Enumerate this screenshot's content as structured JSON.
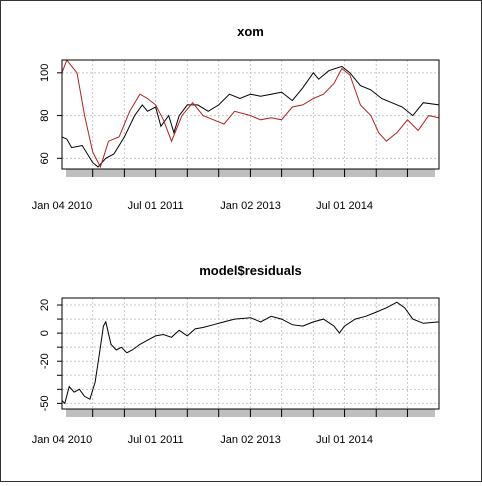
{
  "chart_data": [
    {
      "type": "line",
      "title": "xom",
      "xlabel": "",
      "ylabel": "",
      "x_tick_labels": [
        "Jan 04 2010",
        "Jul 01 2011",
        "Jan 02 2013",
        "Jul 01 2014"
      ],
      "x_tick_dates": [
        "2010-01-04",
        "2011-07-01",
        "2013-01-02",
        "2014-07-01"
      ],
      "x_range": [
        "2010-01-04",
        "2015-12-31"
      ],
      "ylim": [
        55,
        106
      ],
      "y_ticks": [
        60,
        80,
        100
      ],
      "grid": true,
      "colors": {
        "series1": "#000000",
        "series2": "#b22222",
        "axis_band": "#bfbfbf",
        "grid": "#c8c8c8"
      },
      "series": [
        {
          "color": "#000000",
          "points": [
            [
              "2010-01-04",
              70
            ],
            [
              "2010-02-01",
              69
            ],
            [
              "2010-03-01",
              65
            ],
            [
              "2010-05-01",
              66
            ],
            [
              "2010-07-01",
              58
            ],
            [
              "2010-08-01",
              56
            ],
            [
              "2010-09-15",
              60
            ],
            [
              "2010-11-01",
              62
            ],
            [
              "2011-01-01",
              70
            ],
            [
              "2011-03-01",
              80
            ],
            [
              "2011-04-15",
              85
            ],
            [
              "2011-05-15",
              82
            ],
            [
              "2011-07-01",
              84
            ],
            [
              "2011-08-01",
              75
            ],
            [
              "2011-09-15",
              80
            ],
            [
              "2011-10-15",
              72
            ],
            [
              "2011-11-15",
              80
            ],
            [
              "2012-01-01",
              85
            ],
            [
              "2012-03-01",
              85
            ],
            [
              "2012-05-01",
              82
            ],
            [
              "2012-07-01",
              85
            ],
            [
              "2012-09-01",
              90
            ],
            [
              "2012-11-01",
              88
            ],
            [
              "2013-01-02",
              90
            ],
            [
              "2013-03-01",
              89
            ],
            [
              "2013-05-01",
              90
            ],
            [
              "2013-07-01",
              91
            ],
            [
              "2013-09-01",
              87
            ],
            [
              "2013-11-01",
              93
            ],
            [
              "2014-01-01",
              100
            ],
            [
              "2014-02-01",
              97
            ],
            [
              "2014-04-01",
              101
            ],
            [
              "2014-06-15",
              103
            ],
            [
              "2014-08-01",
              100
            ],
            [
              "2014-10-01",
              94
            ],
            [
              "2014-12-01",
              92
            ],
            [
              "2015-02-01",
              88
            ],
            [
              "2015-04-01",
              86
            ],
            [
              "2015-06-01",
              84
            ],
            [
              "2015-08-01",
              80
            ],
            [
              "2015-10-01",
              86
            ],
            [
              "2015-12-31",
              85
            ]
          ]
        },
        {
          "color": "#b22222",
          "points": [
            [
              "2010-01-04",
              100
            ],
            [
              "2010-02-01",
              106
            ],
            [
              "2010-02-20",
              104
            ],
            [
              "2010-04-01",
              100
            ],
            [
              "2010-05-15",
              80
            ],
            [
              "2010-07-01",
              63
            ],
            [
              "2010-08-15",
              56
            ],
            [
              "2010-10-01",
              68
            ],
            [
              "2010-12-01",
              70
            ],
            [
              "2011-02-01",
              82
            ],
            [
              "2011-04-01",
              90
            ],
            [
              "2011-05-15",
              88
            ],
            [
              "2011-07-01",
              85
            ],
            [
              "2011-08-15",
              78
            ],
            [
              "2011-10-01",
              68
            ],
            [
              "2011-12-01",
              80
            ],
            [
              "2012-02-01",
              86
            ],
            [
              "2012-04-01",
              80
            ],
            [
              "2012-06-01",
              78
            ],
            [
              "2012-08-01",
              76
            ],
            [
              "2012-10-01",
              82
            ],
            [
              "2013-01-02",
              80
            ],
            [
              "2013-03-01",
              78
            ],
            [
              "2013-05-01",
              79
            ],
            [
              "2013-07-01",
              78
            ],
            [
              "2013-09-01",
              84
            ],
            [
              "2013-11-01",
              85
            ],
            [
              "2014-01-01",
              88
            ],
            [
              "2014-03-01",
              90
            ],
            [
              "2014-05-01",
              95
            ],
            [
              "2014-06-15",
              102
            ],
            [
              "2014-08-01",
              99
            ],
            [
              "2014-10-01",
              85
            ],
            [
              "2014-12-01",
              80
            ],
            [
              "2015-01-15",
              72
            ],
            [
              "2015-03-01",
              68
            ],
            [
              "2015-05-01",
              72
            ],
            [
              "2015-07-01",
              78
            ],
            [
              "2015-09-01",
              73
            ],
            [
              "2015-11-01",
              80
            ],
            [
              "2015-12-31",
              79
            ]
          ]
        }
      ]
    },
    {
      "type": "line",
      "title": "model$residuals",
      "xlabel": "",
      "ylabel": "",
      "x_tick_labels": [
        "Jan 04 2010",
        "Jul 01 2011",
        "Jan 02 2013",
        "Jul 01 2014"
      ],
      "x_tick_dates": [
        "2010-01-04",
        "2011-07-01",
        "2013-01-02",
        "2014-07-01"
      ],
      "x_range": [
        "2010-01-04",
        "2015-12-31"
      ],
      "ylim": [
        -54,
        25
      ],
      "y_ticks": [
        -50,
        -20,
        0,
        20
      ],
      "y_tick_labels_left_axis": [
        "-50",
        "-20",
        "0",
        "20"
      ],
      "y_tick_marks_only": [
        -40,
        -30,
        -10,
        10
      ],
      "grid": true,
      "colors": {
        "series1": "#000000",
        "axis_band": "#bfbfbf",
        "grid": "#c8c8c8"
      },
      "series": [
        {
          "color": "#000000",
          "points": [
            [
              "2010-01-04",
              -48
            ],
            [
              "2010-01-20",
              -50
            ],
            [
              "2010-02-15",
              -38
            ],
            [
              "2010-03-15",
              -42
            ],
            [
              "2010-04-15",
              -40
            ],
            [
              "2010-05-15",
              -45
            ],
            [
              "2010-06-15",
              -47
            ],
            [
              "2010-07-15",
              -35
            ],
            [
              "2010-08-15",
              -10
            ],
            [
              "2010-09-01",
              5
            ],
            [
              "2010-09-15",
              8
            ],
            [
              "2010-10-15",
              -8
            ],
            [
              "2010-11-15",
              -12
            ],
            [
              "2010-12-15",
              -10
            ],
            [
              "2011-01-15",
              -14
            ],
            [
              "2011-02-15",
              -12
            ],
            [
              "2011-04-01",
              -8
            ],
            [
              "2011-05-15",
              -5
            ],
            [
              "2011-07-01",
              -2
            ],
            [
              "2011-08-15",
              -1
            ],
            [
              "2011-10-01",
              -3
            ],
            [
              "2011-11-15",
              2
            ],
            [
              "2012-01-01",
              -2
            ],
            [
              "2012-02-15",
              3
            ],
            [
              "2012-04-01",
              4
            ],
            [
              "2012-06-01",
              6
            ],
            [
              "2012-08-01",
              8
            ],
            [
              "2012-10-01",
              10
            ],
            [
              "2013-01-02",
              11
            ],
            [
              "2013-03-01",
              8
            ],
            [
              "2013-05-01",
              12
            ],
            [
              "2013-07-01",
              10
            ],
            [
              "2013-09-01",
              6
            ],
            [
              "2013-11-01",
              5
            ],
            [
              "2014-01-01",
              8
            ],
            [
              "2014-03-01",
              10
            ],
            [
              "2014-05-01",
              5
            ],
            [
              "2014-06-01",
              0
            ],
            [
              "2014-07-01",
              5
            ],
            [
              "2014-09-01",
              10
            ],
            [
              "2014-11-01",
              12
            ],
            [
              "2015-01-01",
              15
            ],
            [
              "2015-03-01",
              18
            ],
            [
              "2015-05-01",
              22
            ],
            [
              "2015-06-15",
              18
            ],
            [
              "2015-08-01",
              10
            ],
            [
              "2015-10-01",
              7
            ],
            [
              "2015-12-31",
              8
            ]
          ]
        }
      ]
    }
  ]
}
